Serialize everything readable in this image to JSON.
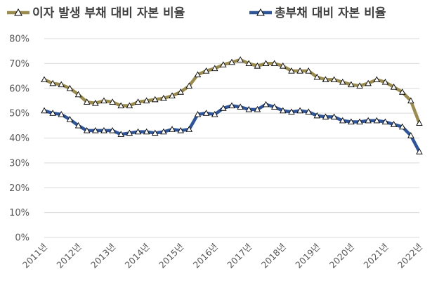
{
  "chart_data": {
    "type": "line",
    "title": "",
    "xlabel": "",
    "ylabel": "",
    "ylim": [
      0,
      80
    ],
    "y_ticks": [
      "0%",
      "10%",
      "20%",
      "30%",
      "40%",
      "50%",
      "60%",
      "70%",
      "80%"
    ],
    "x_tick_labels": [
      "2011년",
      "2012년",
      "2013년",
      "2014년",
      "2015년",
      "2016년",
      "2017년",
      "2018년",
      "2019년",
      "2020년",
      "2021년",
      "2022년"
    ],
    "grid": "horizontal",
    "legend_position": "top",
    "marker": "triangle-open",
    "series": [
      {
        "name": "이자 발생 부채 대비 자본 비율",
        "color": "#9a8b50",
        "values": [
          63.5,
          62,
          61.5,
          60,
          57.5,
          54.5,
          54,
          55,
          54.5,
          53,
          53,
          54.5,
          55,
          55.5,
          56,
          57,
          58.5,
          61,
          65.5,
          67,
          68,
          69.5,
          70.5,
          71.5,
          70,
          69,
          70,
          70,
          69,
          67,
          67,
          67,
          64.5,
          63.5,
          63.5,
          62.5,
          61.5,
          61,
          62,
          63.5,
          62.5,
          60.5,
          58.5,
          55,
          46
        ]
      },
      {
        "name": "총부채 대비 자본 비율",
        "color": "#2f5597",
        "values": [
          51,
          50,
          49.5,
          47.5,
          45,
          43,
          43,
          43,
          43,
          41.5,
          42,
          42.5,
          42.5,
          42,
          42.5,
          43.5,
          43,
          43.5,
          49.5,
          50,
          49.5,
          52,
          53,
          52.5,
          51.5,
          51.5,
          53.5,
          52.5,
          51,
          50.5,
          51,
          50.5,
          49,
          48.5,
          48.5,
          47,
          46.5,
          46.5,
          47,
          47,
          46.5,
          45.5,
          44.5,
          41,
          34.5
        ]
      }
    ]
  }
}
